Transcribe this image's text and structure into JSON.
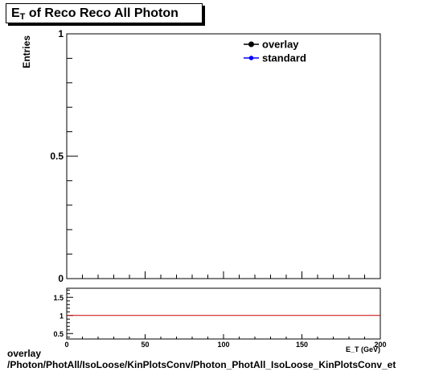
{
  "title": {
    "prefix": "E",
    "subscript": "T",
    "rest": " of Reco Reco All Photon"
  },
  "footer": {
    "line1": "overlay",
    "line2": "/Photon/PhotAll/IsoLoose/KinPlotsConv/Photon_PhotAll_IsoLoose_KinPlotsConv_et"
  },
  "chart_data": [
    {
      "type": "line",
      "ylabel": "Entries",
      "xlim": [
        0,
        200
      ],
      "ylim": [
        0,
        1
      ],
      "y_ticks": [
        {
          "value": 0,
          "label": "0"
        },
        {
          "value": 0.5,
          "label": "0.5"
        },
        {
          "value": 1,
          "label": "1"
        }
      ],
      "legend": {
        "placement": "top-right",
        "entries": [
          {
            "name": "overlay",
            "color": "#000000"
          },
          {
            "name": "standard",
            "color": "#0000ff"
          }
        ]
      },
      "series": [
        {
          "name": "overlay",
          "values": []
        },
        {
          "name": "standard",
          "values": []
        }
      ]
    },
    {
      "type": "line",
      "xlabel": "E_T (GeV)",
      "xlim": [
        0,
        200
      ],
      "ylim": [
        0.35,
        1.75
      ],
      "x_ticks": [
        {
          "value": 0,
          "label": "0"
        },
        {
          "value": 50,
          "label": "50"
        },
        {
          "value": 100,
          "label": "100"
        },
        {
          "value": 150,
          "label": "150"
        },
        {
          "value": 200,
          "label": "200"
        }
      ],
      "y_ticks": [
        {
          "value": 0.5,
          "label": "0.5"
        },
        {
          "value": 1,
          "label": "1"
        },
        {
          "value": 1.5,
          "label": "1.5"
        }
      ],
      "reference_line": {
        "y": 1,
        "color": "#cc0000"
      }
    }
  ]
}
